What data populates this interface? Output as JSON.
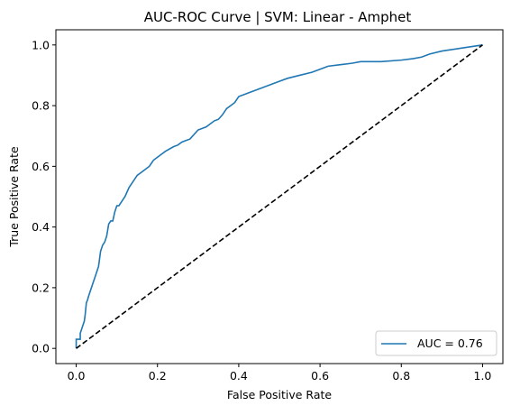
{
  "chart_data": {
    "type": "line",
    "title": "AUC-ROC Curve | SVM: Linear - Amphet",
    "xlabel": "False Positive Rate",
    "ylabel": "True Positive Rate",
    "xlim": [
      -0.05,
      1.05
    ],
    "ylim": [
      -0.05,
      1.05
    ],
    "xticks": [
      "0.0",
      "0.2",
      "0.4",
      "0.6",
      "0.8",
      "1.0"
    ],
    "yticks": [
      "0.0",
      "0.2",
      "0.4",
      "0.6",
      "0.8",
      "1.0"
    ],
    "grid": false,
    "legend_position": "bottom-right",
    "series": [
      {
        "name": "AUC = 0.76",
        "color": "#1f77b4",
        "style": "solid",
        "x": [
          0.0,
          0.0,
          0.01,
          0.01,
          0.015,
          0.02,
          0.022,
          0.025,
          0.028,
          0.03,
          0.035,
          0.04,
          0.045,
          0.05,
          0.055,
          0.06,
          0.065,
          0.07,
          0.075,
          0.08,
          0.085,
          0.09,
          0.095,
          0.1,
          0.105,
          0.11,
          0.115,
          0.12,
          0.13,
          0.14,
          0.15,
          0.16,
          0.17,
          0.18,
          0.19,
          0.2,
          0.21,
          0.22,
          0.24,
          0.25,
          0.26,
          0.27,
          0.28,
          0.3,
          0.31,
          0.32,
          0.33,
          0.34,
          0.35,
          0.36,
          0.37,
          0.38,
          0.39,
          0.4,
          0.42,
          0.44,
          0.46,
          0.48,
          0.5,
          0.52,
          0.55,
          0.58,
          0.6,
          0.62,
          0.65,
          0.68,
          0.7,
          0.75,
          0.8,
          0.83,
          0.85,
          0.87,
          0.9,
          0.95,
          1.0
        ],
        "y": [
          0.0,
          0.03,
          0.03,
          0.05,
          0.07,
          0.09,
          0.11,
          0.15,
          0.16,
          0.17,
          0.19,
          0.21,
          0.23,
          0.25,
          0.27,
          0.32,
          0.34,
          0.35,
          0.37,
          0.41,
          0.42,
          0.42,
          0.45,
          0.47,
          0.47,
          0.48,
          0.49,
          0.5,
          0.53,
          0.55,
          0.57,
          0.58,
          0.59,
          0.6,
          0.62,
          0.63,
          0.64,
          0.65,
          0.665,
          0.67,
          0.68,
          0.685,
          0.69,
          0.72,
          0.725,
          0.73,
          0.74,
          0.75,
          0.755,
          0.77,
          0.79,
          0.8,
          0.81,
          0.83,
          0.84,
          0.85,
          0.86,
          0.87,
          0.88,
          0.89,
          0.9,
          0.91,
          0.92,
          0.93,
          0.935,
          0.94,
          0.945,
          0.945,
          0.95,
          0.955,
          0.96,
          0.97,
          0.98,
          0.99,
          1.0
        ]
      },
      {
        "name": "",
        "color": "#000000",
        "style": "dashed",
        "x": [
          0.0,
          1.0
        ],
        "y": [
          0.0,
          1.0
        ]
      }
    ]
  }
}
